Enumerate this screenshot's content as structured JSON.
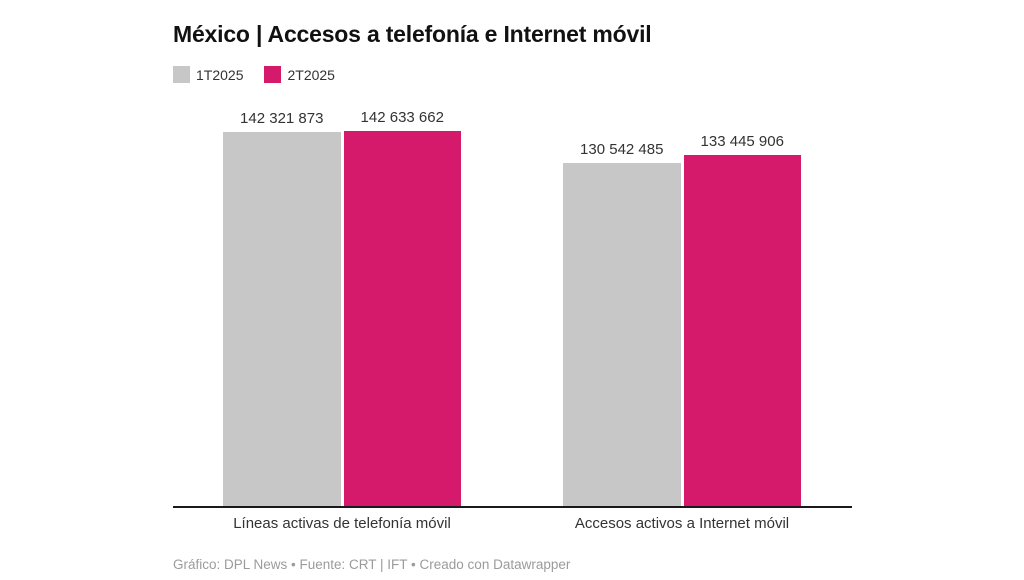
{
  "title": "México | Accesos a telefonía e Internet móvil",
  "legend": [
    {
      "label": "1T2025",
      "color": "#c7c7c7"
    },
    {
      "label": "2T2025",
      "color": "#d51a6b"
    }
  ],
  "chart_data": {
    "type": "bar",
    "title": "México | Accesos a telefonía e Internet móvil",
    "categories": [
      "Líneas activas de telefonía móvil",
      "Accesos activos a Internet móvil"
    ],
    "series": [
      {
        "name": "1T2025",
        "color": "#c7c7c7",
        "values": [
          142321873,
          130542485
        ],
        "value_labels": [
          "142 321 873",
          "130 542 485"
        ]
      },
      {
        "name": "2T2025",
        "color": "#d51a6b",
        "values": [
          142633662,
          133445906
        ],
        "value_labels": [
          "142 633 662",
          "133 445 906"
        ]
      }
    ],
    "xlabel": "",
    "ylabel": "",
    "ylim": [
      0,
      142633662
    ],
    "grid": false,
    "legend_position": "top-left",
    "axis_line_color": "#1a1a1a"
  },
  "footer": "Gráfico: DPL News • Fuente: CRT | IFT • Creado con Datawrapper"
}
